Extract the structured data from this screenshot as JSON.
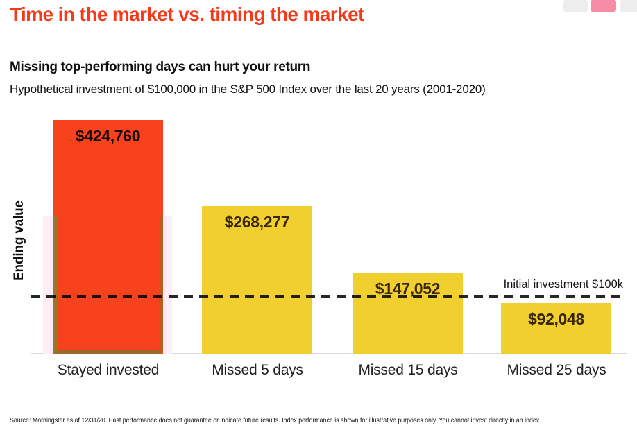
{
  "header": {
    "title": "Time in the market vs. timing the market",
    "subtitle": "Missing top-performing days can hurt your return",
    "description": "Hypothetical investment of $100,000 in the S&P 500 Index over the last 20 years (2001-2020)"
  },
  "chart_data": {
    "type": "bar",
    "title": "Missing top-performing days can hurt your return",
    "categories": [
      "Stayed invested",
      "Missed 5 days",
      "Missed 15 days",
      "Missed 25 days"
    ],
    "values": [
      424760,
      268277,
      147052,
      92048
    ],
    "value_labels": [
      "$424,760",
      "$268,277",
      "$147,052",
      "$92,048"
    ],
    "xlabel": "",
    "ylabel": "Ending value",
    "ylim": [
      0,
      450000
    ],
    "grid": false,
    "legend": "none",
    "reference_line": {
      "value": 100000,
      "label": "Initial investment $100k"
    },
    "bar_colors": [
      "#F8421E",
      "#F0CF2E",
      "#F0CF2E",
      "#F0CF2E"
    ],
    "highlight_band": {
      "behind_category": "Stayed invested",
      "color": "#FFECF7"
    }
  },
  "footer": {
    "source": "Source: Morningstar as of 12/31/20. Past performance does not guarantee or indicate future results. Index performance is shown for illustrative purposes only. You cannot invest directly in an index."
  },
  "decor": {
    "squares": [
      "#EDEDED",
      "#F78CA6",
      "#EDEDED"
    ]
  },
  "colors": {
    "title": "#F43A1B",
    "red_bar": "#F8421E",
    "yellow_bar": "#F0CF2E",
    "highlight": "#FFECF7",
    "baseline": "#DBDBDB",
    "dashed_line": "#000000"
  }
}
